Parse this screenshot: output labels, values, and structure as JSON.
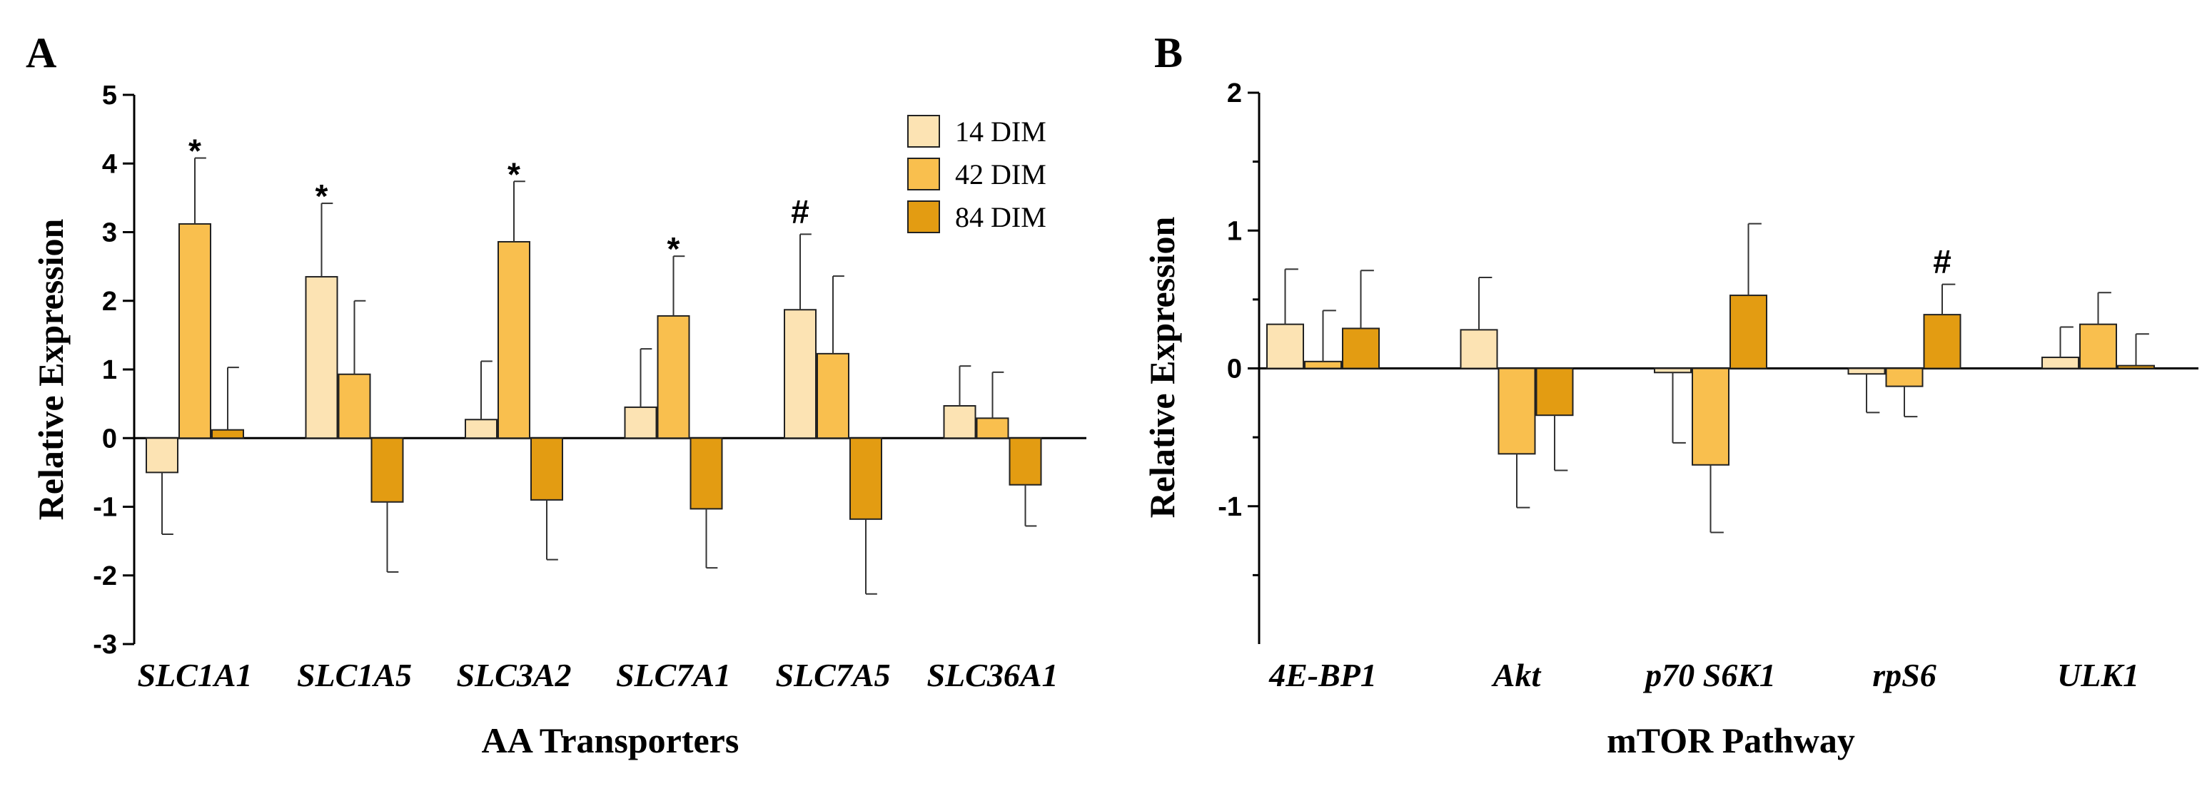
{
  "chart_data": [
    {
      "panel": "A",
      "type": "bar",
      "categories": [
        "SLC1A1",
        "SLC1A5",
        "SLC3A2",
        "SLC7A1",
        "SLC7A5",
        "SLC36A1"
      ],
      "series": [
        {
          "name": "14  DIM",
          "color": "#FCE3B3",
          "values": [
            -0.5,
            2.35,
            0.27,
            0.45,
            1.87,
            0.47
          ],
          "errors": [
            0.9,
            1.07,
            0.85,
            0.85,
            1.1,
            0.58
          ]
        },
        {
          "name": "42 DIM",
          "color": "#F9BF4E",
          "values": [
            3.12,
            0.93,
            2.86,
            1.78,
            1.23,
            0.29
          ],
          "errors": [
            0.96,
            1.07,
            0.88,
            0.87,
            1.13,
            0.67
          ]
        },
        {
          "name": "84 DIM",
          "color": "#E39C12",
          "values": [
            0.12,
            -0.93,
            -0.9,
            -1.03,
            -1.18,
            -0.68
          ],
          "errors": [
            0.91,
            1.02,
            0.87,
            0.86,
            1.09,
            0.6
          ]
        }
      ],
      "annotations": [
        {
          "category": "SLC1A1",
          "series": 1,
          "text": "*"
        },
        {
          "category": "SLC1A5",
          "series": 0,
          "text": "*"
        },
        {
          "category": "SLC3A2",
          "series": 1,
          "text": "*"
        },
        {
          "category": "SLC7A1",
          "series": 1,
          "text": "*"
        },
        {
          "category": "SLC7A5",
          "series": 0,
          "text": "#"
        }
      ],
      "ylim": [
        -3,
        5
      ],
      "yticks": [
        "5",
        "4",
        "3",
        "2",
        "1",
        "0",
        "-1",
        "-2",
        "-3"
      ],
      "ytick_values": [
        5,
        4,
        3,
        2,
        1,
        0,
        -1,
        -2,
        -3
      ],
      "xlabel": "AA Transporters",
      "ylabel": "Relative Expression",
      "legend": true
    },
    {
      "panel": "B",
      "type": "bar",
      "categories": [
        "4E-BP1",
        "Akt",
        "p70 S6K1",
        "rpS6",
        "ULK1"
      ],
      "series": [
        {
          "name": "14  DIM",
          "color": "#FCE3B3",
          "values": [
            0.32,
            0.28,
            -0.03,
            -0.04,
            0.08
          ],
          "errors": [
            0.4,
            0.38,
            0.51,
            0.28,
            0.22
          ]
        },
        {
          "name": "42 DIM",
          "color": "#F9BF4E",
          "values": [
            0.05,
            -0.62,
            -0.7,
            -0.13,
            0.32
          ],
          "errors": [
            0.37,
            0.39,
            0.49,
            0.22,
            0.23
          ]
        },
        {
          "name": "84 DIM",
          "color": "#E39C12",
          "values": [
            0.29,
            -0.34,
            0.53,
            0.39,
            0.02
          ],
          "errors": [
            0.42,
            0.4,
            0.52,
            0.22,
            0.23
          ]
        }
      ],
      "annotations": [
        {
          "category": "rpS6",
          "series": 2,
          "text": "#"
        }
      ],
      "ylim": [
        -2,
        2
      ],
      "yticks": [
        "2",
        "1",
        "0",
        "-1"
      ],
      "ytick_values": [
        2,
        1,
        0,
        -1
      ],
      "xlabel": "mTOR Pathway",
      "ylabel": "Relative Expression",
      "legend": false
    }
  ]
}
